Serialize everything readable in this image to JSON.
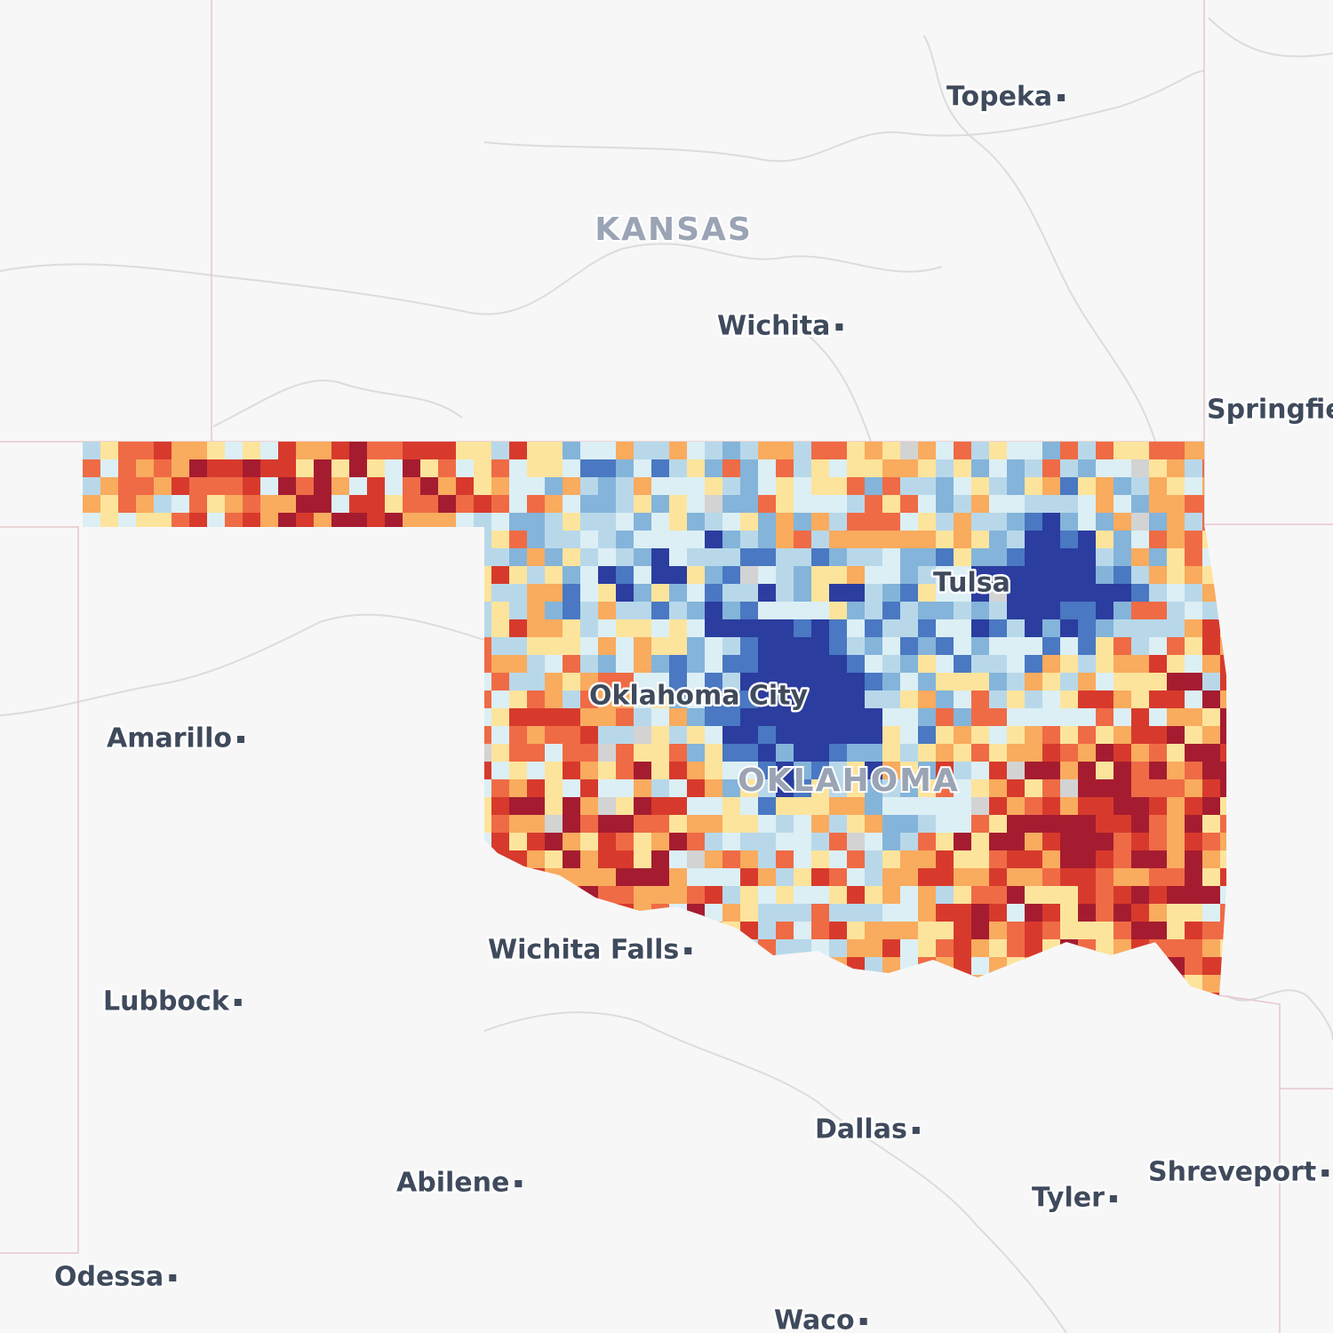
{
  "map": {
    "state_labels": [
      "KANSAS",
      "OKLAHOMA"
    ],
    "city_labels": [
      "Topeka",
      "Wichita",
      "Springfield",
      "Tulsa",
      "Oklahoma City",
      "Amarillo",
      "Wichita Falls",
      "Lubbock",
      "Dallas",
      "Abilene",
      "Shreveport",
      "Tyler",
      "Odessa",
      "Waco"
    ]
  }
}
